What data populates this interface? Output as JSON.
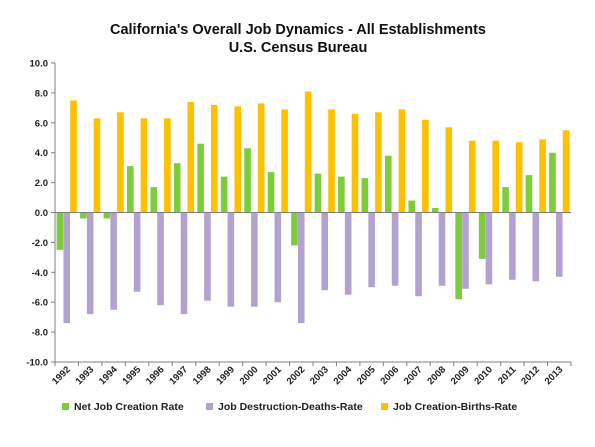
{
  "chart_data": {
    "type": "bar",
    "title": "California's Overall Job Dynamics - All Establishments",
    "subtitle": "U.S. Census Bureau",
    "xlabel": "",
    "ylabel": "",
    "ylim": [
      -10,
      10
    ],
    "y_ticks": [
      "10.0",
      "8.0",
      "6.0",
      "4.0",
      "2.0",
      "0.0",
      "-2.0",
      "-4.0",
      "-6.0",
      "-8.0",
      "-10.0"
    ],
    "grid": false,
    "legend_position": "bottom",
    "categories": [
      "1992",
      "1993",
      "1994",
      "1995",
      "1996",
      "1997",
      "1998",
      "1999",
      "2000",
      "2001",
      "2002",
      "2003",
      "2004",
      "2005",
      "2006",
      "2007",
      "2008",
      "2009",
      "2010",
      "2011",
      "2012",
      "2013"
    ],
    "series": [
      {
        "name": "Net Job Creation Rate",
        "color": "#7dcc3c",
        "values": [
          -2.5,
          -0.4,
          -0.4,
          3.1,
          1.7,
          3.3,
          4.6,
          2.4,
          4.3,
          2.7,
          -2.2,
          2.6,
          2.4,
          2.3,
          3.8,
          0.8,
          0.3,
          -5.8,
          -3.1,
          1.7,
          2.5,
          4.0
        ]
      },
      {
        "name": "Job Destruction-Deaths-Rate",
        "color": "#b3a2cf",
        "values": [
          -7.4,
          -6.8,
          -6.5,
          -5.3,
          -6.2,
          -6.8,
          -5.9,
          -6.3,
          -6.3,
          -6.0,
          -7.4,
          -5.2,
          -5.5,
          -5.0,
          -4.9,
          -5.6,
          -4.9,
          -5.1,
          -4.8,
          -4.5,
          -4.6,
          -4.3
        ]
      },
      {
        "name": "Job Creation-Births-Rate",
        "color": "#ffc000",
        "values": [
          7.5,
          6.3,
          6.7,
          6.3,
          6.3,
          7.4,
          7.2,
          7.1,
          7.3,
          6.9,
          8.1,
          6.9,
          6.6,
          6.7,
          6.9,
          6.2,
          5.7,
          4.8,
          4.8,
          4.7,
          4.9,
          5.5
        ]
      }
    ]
  }
}
